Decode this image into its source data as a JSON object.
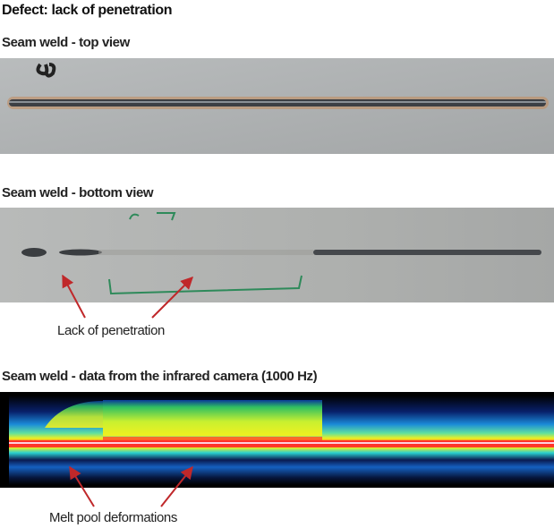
{
  "header": {
    "title": "Defect: lack of penetration"
  },
  "panels": [
    {
      "label": "Seam weld - top view"
    },
    {
      "label": "Seam weld - bottom view",
      "annotation": "Lack of penetration"
    },
    {
      "label": "Seam weld - data from the infrared camera (1000 Hz)",
      "annotation": "Melt pool deformations"
    }
  ]
}
